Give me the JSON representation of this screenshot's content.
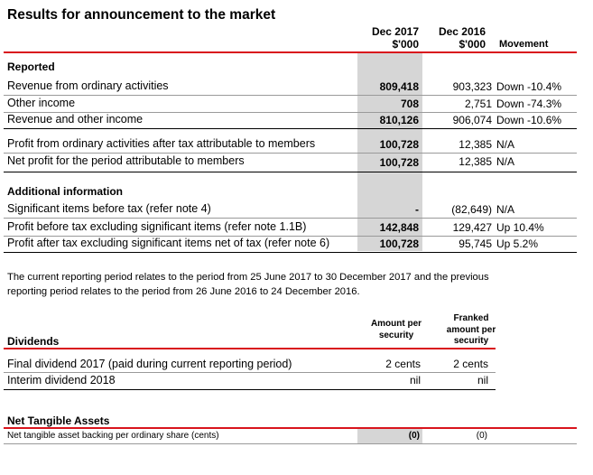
{
  "title": "Results for announcement to the market",
  "columns": {
    "dec2017": "Dec 2017",
    "dec2017_unit": "$'000",
    "dec2016": "Dec 2016",
    "dec2016_unit": "$'000",
    "movement": "Movement"
  },
  "reported": {
    "heading": "Reported",
    "rows": [
      {
        "label": "Revenue from ordinary activities",
        "dec2017": "809,418",
        "dec2016": "903,323",
        "movement": "Down -10.4%"
      },
      {
        "label": "Other income",
        "dec2017": "708",
        "dec2016": "2,751",
        "movement": "Down -74.3%"
      },
      {
        "label": "Revenue and other income",
        "dec2017": "810,126",
        "dec2016": "906,074",
        "movement": "Down -10.6%"
      },
      {
        "label": "Profit from ordinary activities after tax attributable to members",
        "dec2017": "100,728",
        "dec2016": "12,385",
        "movement": "N/A"
      },
      {
        "label": "Net profit for the period attributable to members",
        "dec2017": "100,728",
        "dec2016": "12,385",
        "movement": "N/A"
      }
    ]
  },
  "additional": {
    "heading": "Additional information",
    "rows": [
      {
        "label": "Significant items before tax (refer note 4)",
        "dec2017": "-",
        "dec2016": "(82,649)",
        "movement": "N/A"
      },
      {
        "label": "Profit before tax excluding significant items (refer note 1.1B)",
        "dec2017": "142,848",
        "dec2016": "129,427",
        "movement": "Up 10.4%"
      },
      {
        "label": "Profit after tax excluding significant items net of tax (refer note 6)",
        "dec2017": "100,728",
        "dec2016": "95,745",
        "movement": "Up 5.2%"
      }
    ]
  },
  "note": "The current reporting period relates to the period from 25 June 2017 to 30 December 2017 and the previous reporting period relates to the period from 26 June 2016 to 24 December 2016.",
  "dividends": {
    "heading": "Dividends",
    "col1_l1": "Amount per",
    "col1_l2": "security",
    "col2_l1": "Franked",
    "col2_l2": "amount per",
    "col2_l3": "security",
    "rows": [
      {
        "label": "Final dividend 2017 (paid during current reporting period)",
        "amount": "2 cents",
        "franked": "2 cents"
      },
      {
        "label": "Interim dividend 2018",
        "amount": "nil",
        "franked": "nil"
      }
    ]
  },
  "nta": {
    "heading": "Net Tangible Assets",
    "label": "Net tangible asset backing per ordinary share (cents)",
    "dec2017": "(0)",
    "dec2016": "(0)"
  }
}
